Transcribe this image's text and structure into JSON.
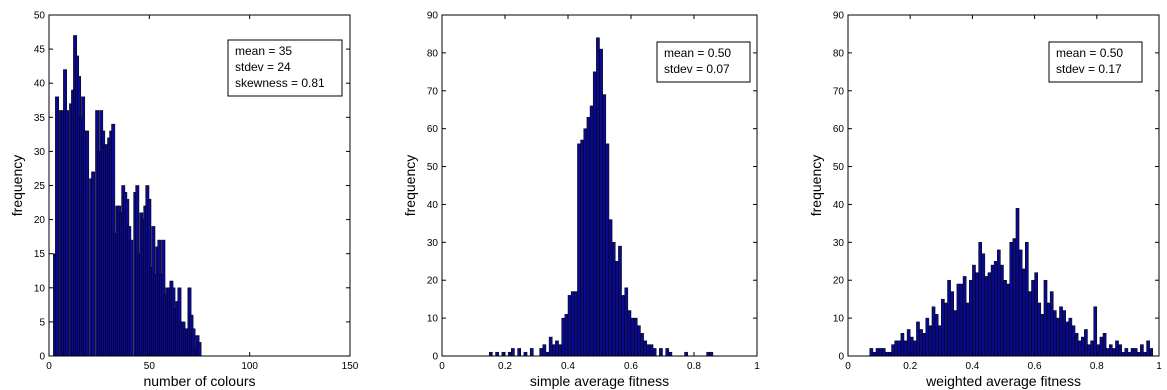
{
  "chart_data": [
    {
      "type": "bar",
      "subtype": "histogram",
      "xlabel": "number of colours",
      "ylabel": "frequency",
      "xlim": [
        0,
        150
      ],
      "ylim": [
        0,
        50
      ],
      "xticks": [
        0,
        50,
        100,
        150
      ],
      "yticks": [
        0,
        5,
        10,
        15,
        20,
        25,
        30,
        35,
        40,
        45,
        50
      ],
      "bar_color": "#0a0a8c",
      "edge_color": "#000000",
      "bin_width": 1.67,
      "legend_position": "top-right",
      "stats": [
        "mean = 35",
        "stdev = 24",
        "skewness = 0.81"
      ],
      "x": [
        1,
        3,
        4,
        6,
        7,
        8,
        9,
        11,
        12,
        13,
        14,
        15,
        16,
        17,
        18,
        19,
        21,
        22,
        24,
        25,
        26,
        27,
        28,
        29,
        30,
        31,
        32,
        33,
        34,
        35,
        36,
        37,
        38,
        39,
        40,
        41,
        43,
        44,
        45,
        46,
        47,
        48,
        49,
        50,
        51,
        52,
        53,
        54,
        55,
        56,
        57,
        58,
        59,
        60,
        61,
        62,
        63,
        64,
        65,
        66,
        67,
        68,
        69,
        70,
        71,
        72,
        73,
        74,
        75,
        76,
        77,
        78,
        79,
        80,
        81,
        82,
        83,
        84,
        85,
        86,
        87,
        88,
        89,
        90,
        91,
        92,
        93,
        94,
        95,
        96,
        97,
        98,
        99,
        100,
        101,
        102,
        103,
        104,
        105,
        106,
        107,
        108,
        109,
        110,
        111,
        112,
        113,
        114,
        115,
        116,
        117,
        118,
        119,
        120,
        121,
        122,
        123,
        124,
        125,
        126,
        127,
        128,
        129,
        130,
        131,
        132,
        133,
        134,
        135,
        136,
        137,
        138,
        139,
        140,
        141,
        142,
        143,
        144,
        145,
        146,
        147,
        148,
        149
      ],
      "values": [
        0,
        15,
        38,
        36,
        36,
        42,
        36,
        37,
        39,
        47,
        44,
        41,
        35,
        38,
        33,
        33,
        26,
        27,
        36,
        30,
        36,
        33,
        31,
        31,
        32,
        33,
        34,
        18,
        22,
        22,
        21,
        25,
        24,
        23,
        19,
        17,
        24,
        25,
        15,
        21,
        20,
        22,
        25,
        23,
        13,
        19,
        12,
        16,
        17,
        12,
        17,
        9,
        10,
        10,
        11,
        10,
        7,
        8,
        10,
        5,
        5,
        4,
        4,
        10,
        6,
        4,
        1,
        3,
        2,
        0,
        0,
        0,
        0,
        0,
        0,
        0,
        0,
        0,
        0,
        0,
        0,
        0,
        0,
        0,
        0,
        0,
        0,
        0,
        0,
        0,
        0,
        0,
        0,
        0,
        0,
        0,
        0,
        0,
        0,
        0,
        0,
        0,
        0,
        0,
        0,
        0,
        0,
        0,
        0,
        0,
        0,
        0,
        0,
        0,
        0,
        0,
        0,
        0,
        0,
        0,
        0,
        0,
        0,
        0,
        0,
        0,
        0,
        0,
        0,
        0,
        0,
        0,
        0,
        0,
        0,
        0,
        0,
        0,
        0,
        0,
        0,
        0,
        0
      ]
    },
    {
      "type": "bar",
      "subtype": "histogram",
      "xlabel": "simple average fitness",
      "ylabel": "frequency",
      "xlim": [
        0,
        1
      ],
      "ylim": [
        0,
        90
      ],
      "xticks": [
        0,
        0.2,
        0.4,
        0.6,
        0.8,
        1
      ],
      "yticks": [
        0,
        10,
        20,
        30,
        40,
        50,
        60,
        70,
        80,
        90
      ],
      "bar_color": "#0a0a8c",
      "edge_color": "#000000",
      "bin_width": 0.01,
      "legend_position": "top-right",
      "stats": [
        "mean = 0.50",
        "stdev = 0.07"
      ],
      "x": [
        0.155,
        0.175,
        0.195,
        0.215,
        0.225,
        0.245,
        0.265,
        0.285,
        0.315,
        0.325,
        0.335,
        0.345,
        0.355,
        0.365,
        0.375,
        0.385,
        0.395,
        0.405,
        0.415,
        0.425,
        0.435,
        0.445,
        0.455,
        0.465,
        0.475,
        0.485,
        0.495,
        0.505,
        0.515,
        0.525,
        0.535,
        0.545,
        0.555,
        0.565,
        0.575,
        0.585,
        0.595,
        0.605,
        0.615,
        0.625,
        0.635,
        0.645,
        0.655,
        0.665,
        0.675,
        0.695,
        0.715,
        0.725,
        0.775,
        0.845,
        0.855
      ],
      "values": [
        1,
        1,
        1,
        1,
        2,
        2,
        1,
        2,
        2,
        3,
        1,
        5,
        3,
        4,
        3,
        10,
        11,
        16,
        17,
        17,
        56,
        57,
        60,
        63,
        66,
        75,
        84,
        81,
        69,
        56,
        36,
        30,
        25,
        29,
        16,
        18,
        12,
        10,
        10,
        8,
        6,
        4,
        3,
        3,
        2,
        2,
        2,
        1,
        1,
        1,
        1
      ]
    },
    {
      "type": "bar",
      "subtype": "histogram",
      "xlabel": "weighted average fitness",
      "ylabel": "frequency",
      "xlim": [
        0,
        1
      ],
      "ylim": [
        0,
        90
      ],
      "xticks": [
        0,
        0.2,
        0.4,
        0.6,
        0.8,
        1
      ],
      "yticks": [
        0,
        10,
        20,
        30,
        40,
        50,
        60,
        70,
        80,
        90
      ],
      "bar_color": "#0a0a8c",
      "edge_color": "#000000",
      "bin_width": 0.01,
      "legend_position": "top-right",
      "stats": [
        "mean = 0.50",
        "stdev = 0.17"
      ],
      "x": [
        0.075,
        0.085,
        0.095,
        0.105,
        0.115,
        0.125,
        0.135,
        0.145,
        0.155,
        0.165,
        0.175,
        0.185,
        0.195,
        0.205,
        0.215,
        0.225,
        0.235,
        0.245,
        0.255,
        0.265,
        0.275,
        0.285,
        0.295,
        0.305,
        0.315,
        0.325,
        0.335,
        0.345,
        0.355,
        0.365,
        0.375,
        0.385,
        0.395,
        0.405,
        0.415,
        0.425,
        0.435,
        0.445,
        0.455,
        0.465,
        0.475,
        0.485,
        0.495,
        0.505,
        0.515,
        0.525,
        0.535,
        0.545,
        0.555,
        0.565,
        0.575,
        0.585,
        0.595,
        0.605,
        0.615,
        0.625,
        0.635,
        0.645,
        0.655,
        0.665,
        0.675,
        0.685,
        0.695,
        0.705,
        0.715,
        0.725,
        0.735,
        0.745,
        0.755,
        0.765,
        0.775,
        0.785,
        0.795,
        0.805,
        0.815,
        0.825,
        0.835,
        0.845,
        0.855,
        0.865,
        0.875,
        0.885,
        0.895,
        0.905,
        0.915,
        0.925,
        0.935,
        0.945,
        0.955,
        0.965,
        0.975
      ],
      "values": [
        2,
        1,
        2,
        2,
        2,
        1,
        1,
        3,
        4,
        4,
        6,
        4,
        7,
        5,
        4,
        9,
        7,
        6,
        10,
        8,
        13,
        11,
        8,
        15,
        14,
        20,
        17,
        12,
        19,
        19,
        21,
        14,
        20,
        24,
        22,
        30,
        27,
        21,
        22,
        24,
        25,
        28,
        24,
        20,
        19,
        30,
        31,
        39,
        28,
        23,
        30,
        17,
        20,
        22,
        14,
        11,
        20,
        14,
        17,
        12,
        10,
        13,
        12,
        9,
        10,
        8,
        6,
        4,
        5,
        7,
        3,
        4,
        13,
        3,
        5,
        6,
        2,
        3,
        2,
        4,
        3,
        1,
        2,
        1,
        2,
        2,
        1,
        3,
        1,
        4,
        2
      ]
    }
  ]
}
